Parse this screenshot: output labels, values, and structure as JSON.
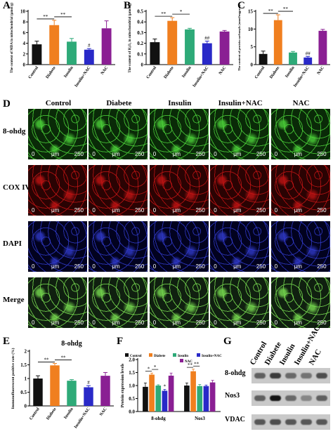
{
  "panels": {
    "A": "A",
    "B": "B",
    "C": "C",
    "D": "D",
    "E": "E",
    "F": "F",
    "G": "G"
  },
  "colors": {
    "control": "#111111",
    "diabete": "#f07f1f",
    "insulin": "#2eaa78",
    "insulin_nac": "#2929c8",
    "nac": "#8a1f93"
  },
  "chart_data": [
    {
      "id": "A",
      "type": "bar",
      "categories": [
        "Control",
        "Diabete",
        "Insulin",
        "Insulin+NAC",
        "NAC"
      ],
      "values": [
        3.8,
        7.4,
        4.3,
        2.8,
        6.8
      ],
      "errors": [
        0.6,
        0.9,
        0.6,
        0.2,
        1.4
      ],
      "ylabel": "The content of MDA in mitochondrial (μmol/g)",
      "ylim": [
        0,
        10
      ],
      "yticks": [
        0,
        2,
        4,
        6,
        8,
        10
      ],
      "annotations": [
        "**",
        "**",
        "#"
      ]
    },
    {
      "id": "B",
      "type": "bar",
      "categories": [
        "Control",
        "Diabete",
        "Insulin",
        "Insulin+NAC",
        "NAC"
      ],
      "values": [
        0.21,
        0.41,
        0.33,
        0.2,
        0.31
      ],
      "errors": [
        0.03,
        0.03,
        0.01,
        0.02,
        0.01
      ],
      "ylabel": "The content of H₂O₂ in mitochondrial (μmol/g)",
      "ylim": [
        0,
        0.5
      ],
      "yticks": [
        0.0,
        0.1,
        0.2,
        0.3,
        0.4,
        0.5
      ],
      "annotations": [
        "**",
        "*",
        "##"
      ]
    },
    {
      "id": "C",
      "type": "bar",
      "categories": [
        "Control",
        "Diabete",
        "Insulin",
        "Insulin+NAC",
        "NAC"
      ],
      "values": [
        3.0,
        12.5,
        3.4,
        2.0,
        9.5
      ],
      "errors": [
        0.8,
        1.5,
        0.3,
        0.3,
        0.4
      ],
      "ylabel": "The content of protein carbonyls (nmol/mgprot)",
      "ylim": [
        0,
        15
      ],
      "yticks": [
        0,
        5,
        10,
        15
      ],
      "annotations": [
        "**",
        "**",
        "##"
      ]
    },
    {
      "id": "E",
      "type": "bar",
      "title": "8-ohdg",
      "categories": [
        "Control",
        "Diabete",
        "Insulin",
        "Insulin+NAC",
        "NAC"
      ],
      "values": [
        1.0,
        1.48,
        0.92,
        0.68,
        1.1
      ],
      "errors": [
        0.1,
        0.07,
        0.04,
        0.06,
        0.12
      ],
      "ylabel": "Immunofluorescent positive rate (%)",
      "ylim": [
        0,
        2.0
      ],
      "yticks": [
        0.0,
        0.5,
        1.0,
        1.5,
        2.0
      ],
      "annotations": [
        "**",
        "**",
        "#"
      ]
    },
    {
      "id": "F",
      "type": "bar",
      "categories": [
        "8-ohdg",
        "Nos3"
      ],
      "series": [
        {
          "name": "Control",
          "values": [
            0.95,
            1.0
          ],
          "errors": [
            0.15,
            0.1
          ]
        },
        {
          "name": "Diabete",
          "values": [
            1.42,
            1.55
          ],
          "errors": [
            0.06,
            0.08
          ]
        },
        {
          "name": "Insulin",
          "values": [
            1.0,
            0.98
          ],
          "errors": [
            0.03,
            0.06
          ]
        },
        {
          "name": "Insulin+NAC",
          "values": [
            0.8,
            0.98
          ],
          "errors": [
            0.05,
            0.04
          ]
        },
        {
          "name": "NAC",
          "values": [
            1.38,
            1.12
          ],
          "errors": [
            0.1,
            0.08
          ]
        }
      ],
      "ylabel": "Protein expression levels",
      "ylim": [
        0,
        2.0
      ],
      "yticks": [
        0.0,
        0.5,
        1.0,
        1.5,
        2.0
      ],
      "legend_placement": "top",
      "annotations": [
        "*",
        "*",
        "*",
        "**",
        "**"
      ]
    }
  ],
  "figure_d": {
    "columns": [
      "Control",
      "Diabete",
      "Insulin",
      "Insulin+NAC",
      "NAC"
    ],
    "rows": [
      "8-ohdg",
      "COX IV",
      "DAPI",
      "Merge"
    ],
    "scale_zero": "0",
    "scale_unit": "μm",
    "scale_max": "250"
  },
  "figure_g": {
    "columns": [
      "Control",
      "Diabete",
      "Insulin",
      "Insulin+NAC",
      "NAC"
    ],
    "rows": [
      "8-ohdg",
      "Nos3",
      "VDAC"
    ]
  }
}
